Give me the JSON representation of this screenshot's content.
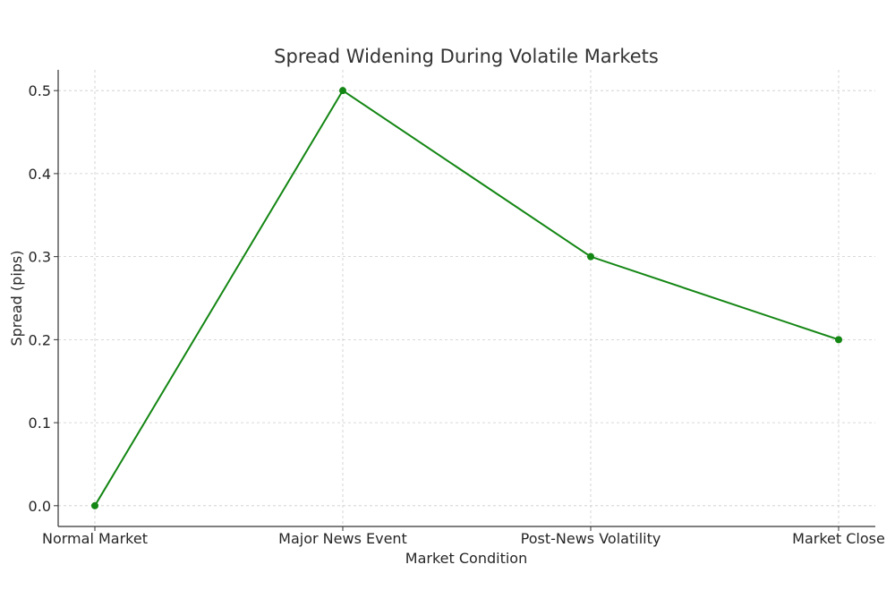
{
  "chart_data": {
    "type": "line",
    "title": "Spread Widening During Volatile Markets",
    "xlabel": "Market Condition",
    "ylabel": "Spread (pips)",
    "categories": [
      "Normal Market",
      "Major News Event",
      "Post-News Volatility",
      "Market Close"
    ],
    "values": [
      0.0,
      0.5,
      0.3,
      0.2
    ],
    "ylim": [
      -0.025,
      0.525
    ],
    "yticks": [
      0.0,
      0.1,
      0.2,
      0.3,
      0.4,
      0.5
    ],
    "ytick_labels": [
      "0.0",
      "0.1",
      "0.2",
      "0.3",
      "0.4",
      "0.5"
    ],
    "grid": true,
    "line_color": "#138613",
    "marker": "circle"
  }
}
